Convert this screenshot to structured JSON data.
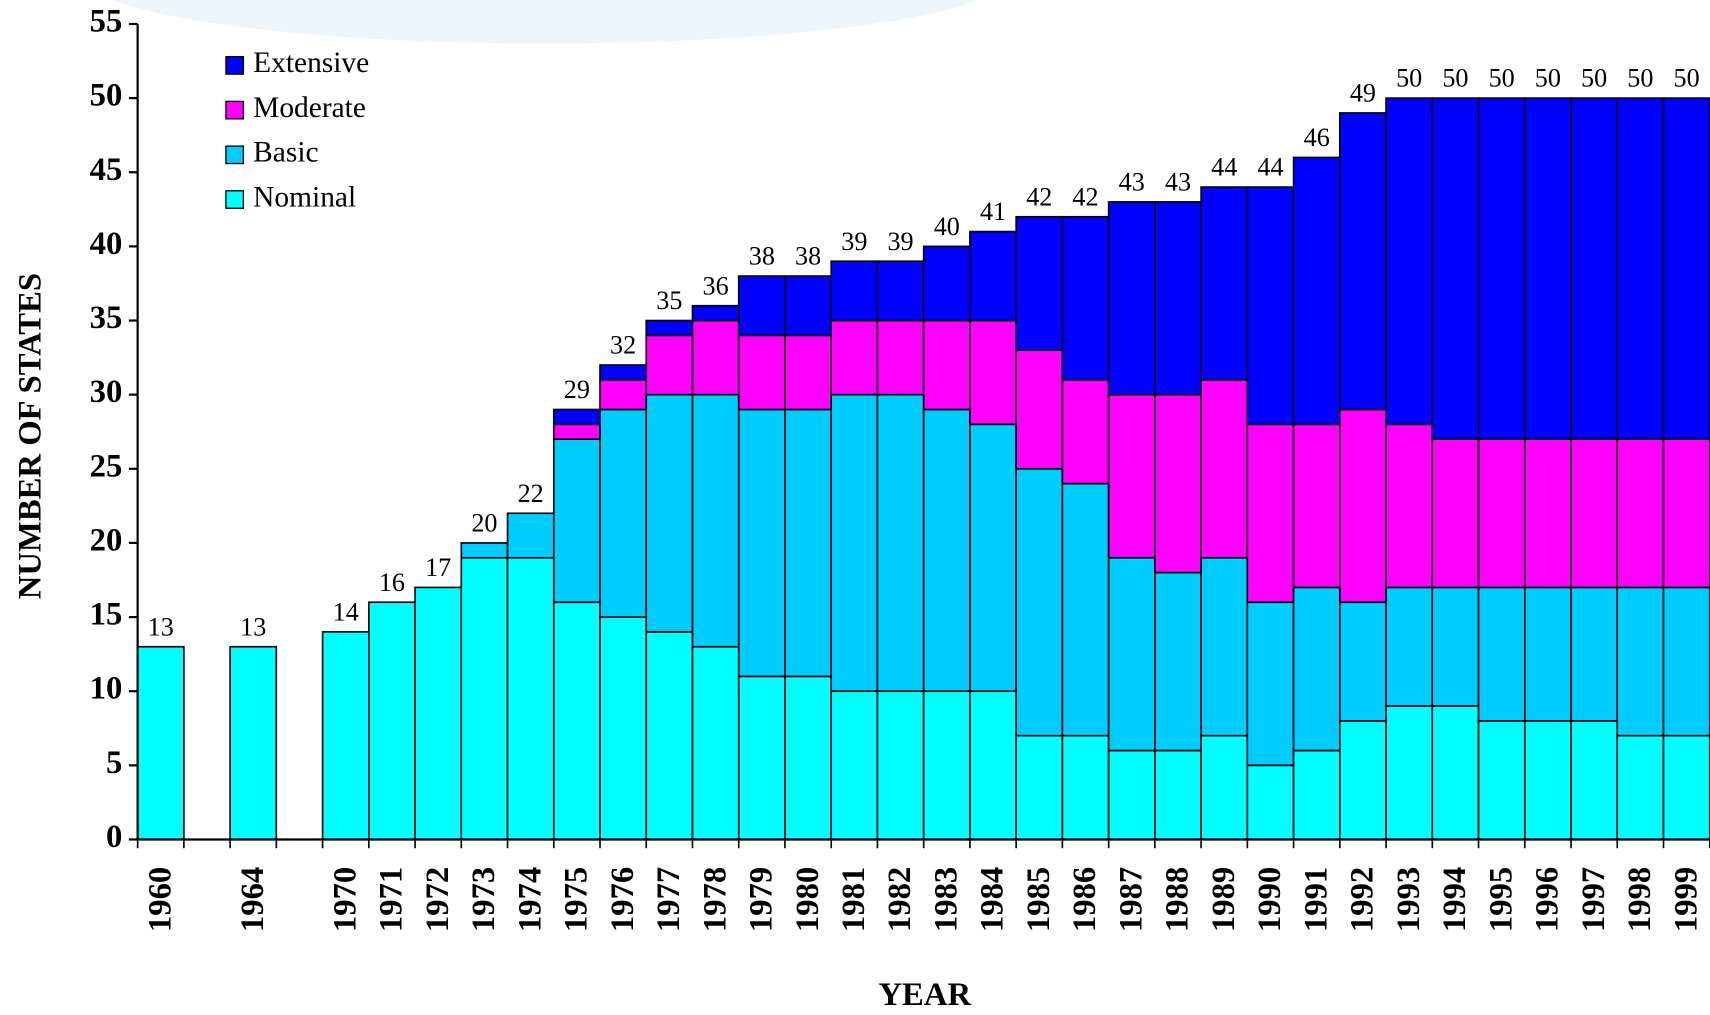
{
  "chart_data": {
    "type": "stacked_bar",
    "x_label": "YEAR",
    "y_label": "NUMBER OF STATES",
    "categories": [
      "1960",
      null,
      "1964",
      null,
      "1970",
      "1971",
      "1972",
      "1973",
      "1974",
      "1975",
      "1976",
      "1977",
      "1978",
      "1979",
      "1980",
      "1981",
      "1982",
      "1983",
      "1984",
      "1985",
      "1986",
      "1987",
      "1988",
      "1989",
      "1990",
      "1991",
      "1992",
      "1993",
      "1994",
      "1995",
      "1996",
      "1997",
      "1998",
      "1999"
    ],
    "series": [
      {
        "name": "Nominal",
        "color": "#00ffff",
        "values": [
          13,
          null,
          13,
          null,
          14,
          16,
          17,
          19,
          19,
          16,
          15,
          14,
          13,
          11,
          11,
          10,
          10,
          10,
          10,
          7,
          7,
          6,
          6,
          7,
          5,
          6,
          8,
          9,
          9,
          8,
          8,
          8,
          7,
          7
        ]
      },
      {
        "name": "Basic",
        "color": "#00ccff",
        "values": [
          0,
          null,
          0,
          null,
          0,
          0,
          0,
          1,
          3,
          11,
          14,
          16,
          17,
          18,
          18,
          20,
          20,
          19,
          18,
          18,
          17,
          13,
          12,
          12,
          11,
          11,
          8,
          8,
          8,
          9,
          9,
          9,
          10,
          10
        ]
      },
      {
        "name": "Moderate",
        "color": "#ff00ff",
        "values": [
          0,
          null,
          0,
          null,
          0,
          0,
          0,
          0,
          0,
          1,
          2,
          4,
          5,
          5,
          5,
          5,
          5,
          6,
          7,
          8,
          7,
          11,
          12,
          12,
          12,
          11,
          13,
          11,
          10,
          10,
          10,
          10,
          10,
          10
        ]
      },
      {
        "name": "Extensive",
        "color": "#0000ff",
        "values": [
          0,
          null,
          0,
          null,
          0,
          0,
          0,
          0,
          0,
          1,
          1,
          1,
          1,
          4,
          4,
          4,
          4,
          5,
          6,
          9,
          11,
          13,
          13,
          13,
          16,
          18,
          20,
          22,
          23,
          23,
          23,
          23,
          23,
          23
        ]
      }
    ],
    "totals": [
      13,
      null,
      13,
      null,
      14,
      16,
      17,
      20,
      22,
      29,
      32,
      35,
      36,
      38,
      38,
      39,
      39,
      40,
      41,
      42,
      42,
      43,
      43,
      44,
      44,
      46,
      49,
      50,
      50,
      50,
      50,
      50,
      50,
      50
    ],
    "ylim": [
      0,
      55
    ],
    "yticks": [
      0,
      5,
      10,
      15,
      20,
      25,
      30,
      35,
      40,
      45,
      50,
      55
    ],
    "legend": "upper left"
  }
}
